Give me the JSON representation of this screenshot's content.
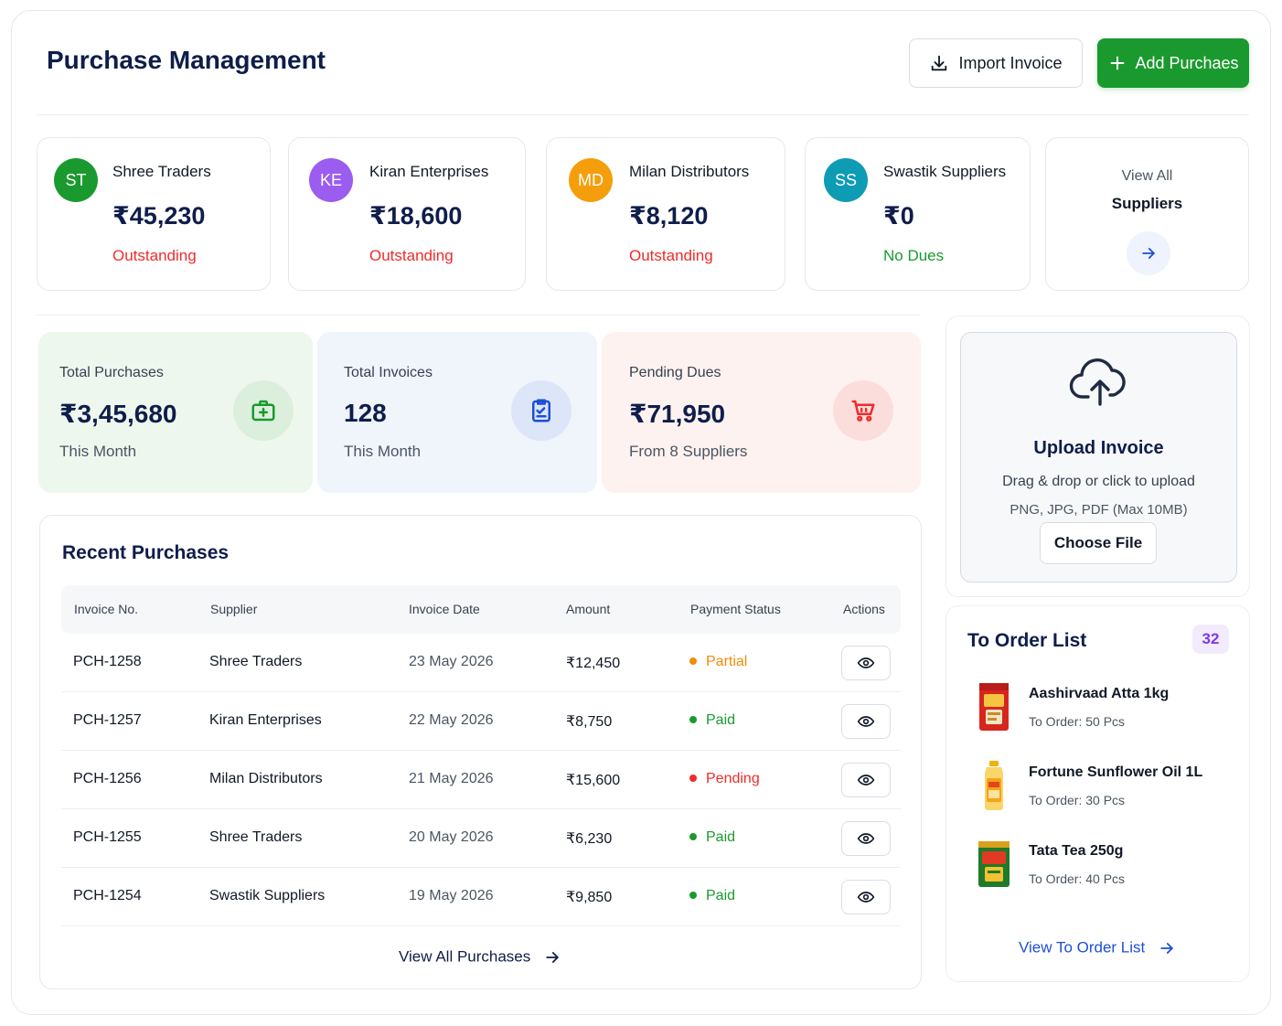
{
  "header": {
    "title": "Purchase Management",
    "import_label": "Import Invoice",
    "add_label": "Add Purchaes"
  },
  "suppliers": [
    {
      "initials": "ST",
      "name": "Shree Traders",
      "amount": "₹45,230",
      "status": "Outstanding",
      "color": "#1a9a2e",
      "status_color": "#ef2b2b"
    },
    {
      "initials": "KE",
      "name": "Kiran Enterprises",
      "amount": "₹18,600",
      "status": "Outstanding",
      "color": "#9b5cf0",
      "status_color": "#ef2b2b"
    },
    {
      "initials": "MD",
      "name": "Milan Distributors",
      "amount": "₹8,120",
      "status": "Outstanding",
      "color": "#f59e0b",
      "status_color": "#ef2b2b"
    },
    {
      "initials": "SS",
      "name": "Swastik Suppliers",
      "amount": "₹0",
      "status": "No Dues",
      "color": "#0e9bb4",
      "status_color": "#1a9a2e"
    }
  ],
  "view_all_suppliers": {
    "line1": "View All",
    "line2": "Suppliers"
  },
  "stats": [
    {
      "label": "Total Purchases",
      "value": "₹3,45,680",
      "sub": "This Month",
      "bg": "#eef7ee",
      "icon_bg": "#dcefdd",
      "icon": "briefcase-plus-icon"
    },
    {
      "label": "Total Invoices",
      "value": "128",
      "sub": "This Month",
      "bg": "#f0f4fb",
      "icon_bg": "#dce6f8",
      "icon": "clipboard-check-icon"
    },
    {
      "label": "Pending Dues",
      "value": "₹71,950",
      "sub": "From 8 Suppliers",
      "bg": "#fdf2ef",
      "icon_bg": "#fbdedb",
      "icon": "cart-icon"
    }
  ],
  "recent": {
    "title": "Recent Purchases",
    "columns": [
      "Invoice No.",
      "Supplier",
      "Invoice Date",
      "Amount",
      "Payment Status",
      "Actions"
    ],
    "rows": [
      {
        "invoice": "PCH-1258",
        "supplier": "Shree Traders",
        "date": "23 May 2026",
        "amount": "₹12,450",
        "status": "Partial",
        "status_color": "#f58a0b"
      },
      {
        "invoice": "PCH-1257",
        "supplier": "Kiran Enterprises",
        "date": "22 May 2026",
        "amount": "₹8,750",
        "status": "Paid",
        "status_color": "#1a9a2e"
      },
      {
        "invoice": "PCH-1256",
        "supplier": "Milan Distributors",
        "date": "21 May 2026",
        "amount": "₹15,600",
        "status": "Pending",
        "status_color": "#ef2b2b"
      },
      {
        "invoice": "PCH-1255",
        "supplier": "Shree Traders",
        "date": "20 May 2026",
        "amount": "₹6,230",
        "status": "Paid",
        "status_color": "#1a9a2e"
      },
      {
        "invoice": "PCH-1254",
        "supplier": "Swastik Suppliers",
        "date": "19 May 2026",
        "amount": "₹9,850",
        "status": "Paid",
        "status_color": "#1a9a2e"
      }
    ],
    "view_all_label": "View All Purchases"
  },
  "upload": {
    "title": "Upload Invoice",
    "hint": "Drag & drop or click to upload",
    "formats": "PNG, JPG, PDF (Max 10MB)",
    "button": "Choose File"
  },
  "to_order": {
    "title": "To Order List",
    "count": "32",
    "items": [
      {
        "name": "Aashirvaad Atta 1kg",
        "qty": "To Order: 50 Pcs",
        "image": "atta-pack-image"
      },
      {
        "name": "Fortune Sunflower Oil 1L",
        "qty": "To Order: 30 Pcs",
        "image": "oil-bottle-image"
      },
      {
        "name": "Tata Tea 250g",
        "qty": "To Order: 40 Pcs",
        "image": "tea-pack-image"
      }
    ],
    "link_label": "View To Order List"
  }
}
